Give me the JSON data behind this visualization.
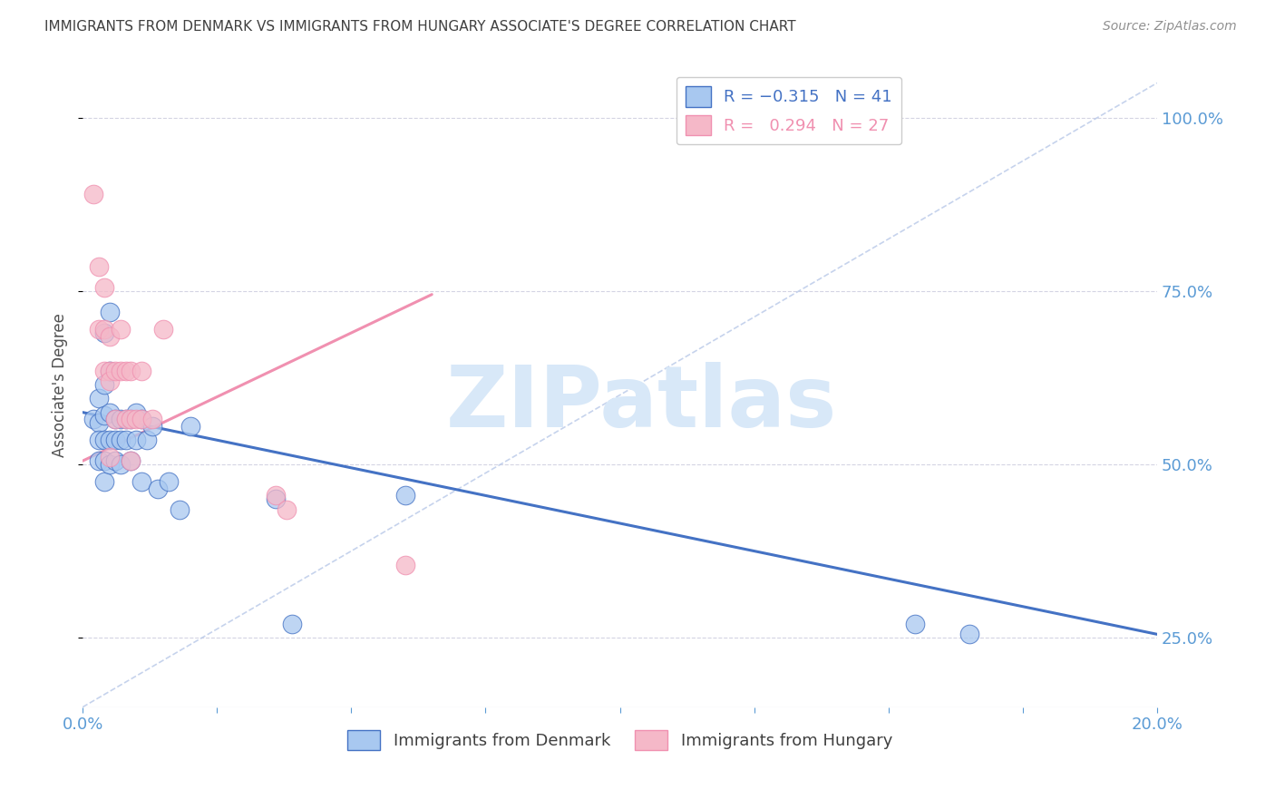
{
  "title": "IMMIGRANTS FROM DENMARK VS IMMIGRANTS FROM HUNGARY ASSOCIATE'S DEGREE CORRELATION CHART",
  "source": "Source: ZipAtlas.com",
  "ylabel": "Associate's Degree",
  "legend_denmark": "R = −0.315   N = 41",
  "legend_hungary": "R =   0.294   N = 27",
  "legend_label_denmark": "Immigrants from Denmark",
  "legend_label_hungary": "Immigrants from Hungary",
  "denmark_color": "#a8c8f0",
  "hungary_color": "#f5b8c8",
  "denmark_line_color": "#4472c4",
  "hungary_line_color": "#f090b0",
  "trendline_dashed_color": "#b8c8e8",
  "background_color": "#ffffff",
  "grid_color": "#d0d0e0",
  "title_color": "#404040",
  "axis_label_color": "#5b9bd5",
  "watermark_color": "#d8e8f8",
  "watermark": "ZIPatlas",
  "xlim": [
    0.0,
    0.2
  ],
  "ylim": [
    0.15,
    1.08
  ],
  "yticks": [
    0.25,
    0.5,
    0.75,
    1.0
  ],
  "xtick_count": 9,
  "denmark_scatter_x": [
    0.002,
    0.003,
    0.003,
    0.003,
    0.003,
    0.004,
    0.004,
    0.004,
    0.004,
    0.004,
    0.004,
    0.005,
    0.005,
    0.005,
    0.005,
    0.005,
    0.006,
    0.006,
    0.006,
    0.007,
    0.007,
    0.007,
    0.008,
    0.008,
    0.009,
    0.009,
    0.01,
    0.01,
    0.011,
    0.011,
    0.012,
    0.013,
    0.014,
    0.016,
    0.018,
    0.02,
    0.036,
    0.039,
    0.06,
    0.155,
    0.165
  ],
  "denmark_scatter_y": [
    0.565,
    0.595,
    0.56,
    0.535,
    0.505,
    0.69,
    0.615,
    0.57,
    0.535,
    0.505,
    0.475,
    0.72,
    0.635,
    0.575,
    0.535,
    0.5,
    0.565,
    0.535,
    0.505,
    0.565,
    0.535,
    0.5,
    0.565,
    0.535,
    0.565,
    0.505,
    0.575,
    0.535,
    0.565,
    0.475,
    0.535,
    0.555,
    0.465,
    0.475,
    0.435,
    0.555,
    0.45,
    0.27,
    0.455,
    0.27,
    0.255
  ],
  "hungary_scatter_x": [
    0.002,
    0.003,
    0.003,
    0.004,
    0.004,
    0.004,
    0.005,
    0.005,
    0.005,
    0.005,
    0.006,
    0.006,
    0.007,
    0.007,
    0.008,
    0.008,
    0.009,
    0.009,
    0.009,
    0.01,
    0.011,
    0.011,
    0.013,
    0.015,
    0.036,
    0.038,
    0.06
  ],
  "hungary_scatter_y": [
    0.89,
    0.785,
    0.695,
    0.755,
    0.695,
    0.635,
    0.685,
    0.635,
    0.62,
    0.51,
    0.635,
    0.565,
    0.695,
    0.635,
    0.635,
    0.565,
    0.635,
    0.565,
    0.505,
    0.565,
    0.635,
    0.565,
    0.565,
    0.695,
    0.455,
    0.435,
    0.355
  ],
  "denmark_trend_x": [
    0.0,
    0.2
  ],
  "denmark_trend_y": [
    0.575,
    0.255
  ],
  "hungary_trend_x": [
    0.0,
    0.065
  ],
  "hungary_trend_y": [
    0.505,
    0.745
  ],
  "dashed_trend_x": [
    0.0,
    0.2
  ],
  "dashed_trend_y": [
    0.15,
    1.05
  ]
}
